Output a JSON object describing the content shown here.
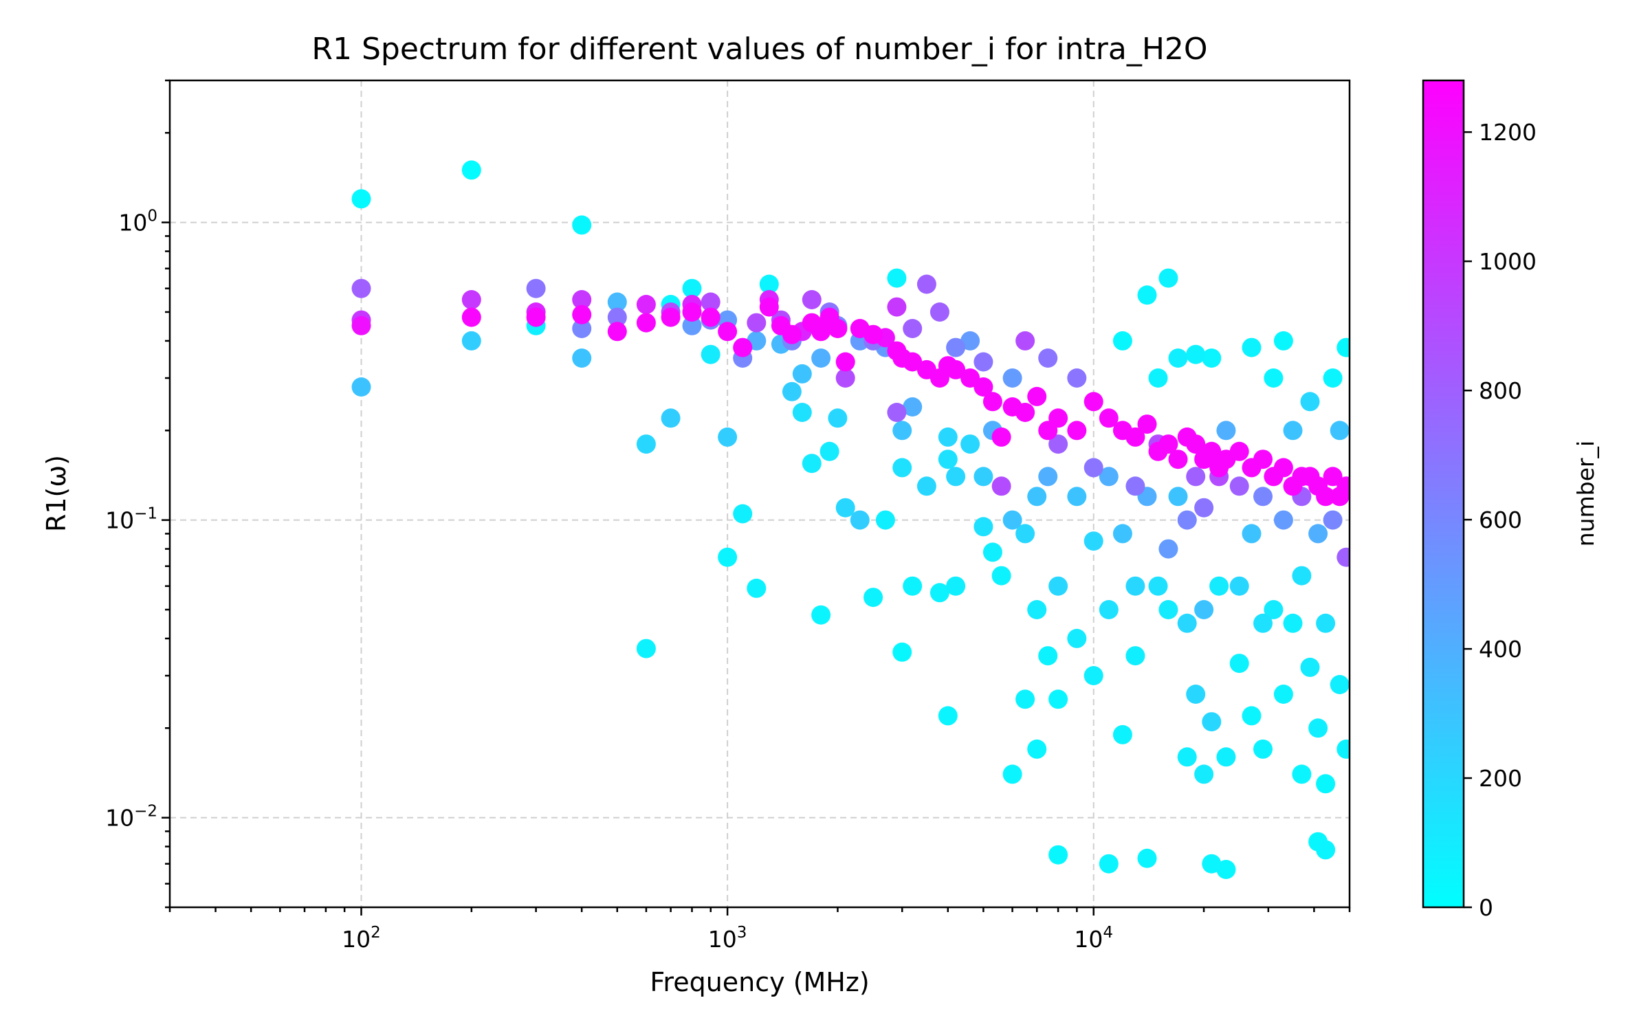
{
  "chart_data": {
    "type": "scatter",
    "title": "R1 Spectrum for different values of number_i for intra_H2O",
    "xlabel": "Frequency (MHz)",
    "ylabel": "R1(ω)",
    "xscale": "log",
    "yscale": "log",
    "xlim": [
      30,
      50000
    ],
    "ylim": [
      0.005,
      3.0
    ],
    "x_ticks": [
      {
        "base": "10",
        "exp": "2",
        "value": 100
      },
      {
        "base": "10",
        "exp": "3",
        "value": 1000
      },
      {
        "base": "10",
        "exp": "4",
        "value": 10000
      }
    ],
    "y_ticks": [
      {
        "base": "10",
        "exp": "0",
        "value": 1
      },
      {
        "base": "10",
        "exp": "−1",
        "value": 0.1
      },
      {
        "base": "10",
        "exp": "−2",
        "value": 0.01
      }
    ],
    "grid": true,
    "colormap": "cool",
    "colorbar": {
      "label": "number_i",
      "range": [
        0,
        1280
      ],
      "ticks": [
        "0",
        "200",
        "400",
        "600",
        "800",
        "1000",
        "1200"
      ],
      "tick_values": [
        0,
        200,
        400,
        600,
        800,
        1000,
        1200
      ]
    },
    "colors": {
      "low": "#00ffff",
      "high": "#ff00ff"
    },
    "points": [
      [
        100,
        1.2,
        30
      ],
      [
        100,
        0.28,
        300
      ],
      [
        100,
        0.6,
        800
      ],
      [
        100,
        0.47,
        1000
      ],
      [
        100,
        0.45,
        1200
      ],
      [
        200,
        1.5,
        20
      ],
      [
        200,
        0.4,
        250
      ],
      [
        200,
        0.55,
        1000
      ],
      [
        200,
        0.48,
        1250
      ],
      [
        300,
        0.45,
        80
      ],
      [
        300,
        0.6,
        700
      ],
      [
        300,
        0.5,
        1100
      ],
      [
        300,
        0.48,
        1250
      ],
      [
        400,
        0.98,
        40
      ],
      [
        400,
        0.35,
        300
      ],
      [
        400,
        0.44,
        600
      ],
      [
        400,
        0.55,
        1000
      ],
      [
        400,
        0.49,
        1250
      ],
      [
        500,
        0.54,
        350
      ],
      [
        500,
        0.48,
        700
      ],
      [
        500,
        0.43,
        1250
      ],
      [
        600,
        0.18,
        200
      ],
      [
        600,
        0.037,
        60
      ],
      [
        600,
        0.53,
        1100
      ],
      [
        600,
        0.46,
        1250
      ],
      [
        700,
        0.22,
        250
      ],
      [
        700,
        0.53,
        50
      ],
      [
        700,
        0.5,
        900
      ],
      [
        700,
        0.48,
        1250
      ],
      [
        800,
        0.6,
        60
      ],
      [
        800,
        0.45,
        500
      ],
      [
        800,
        0.53,
        1100
      ],
      [
        800,
        0.5,
        1250
      ],
      [
        900,
        0.36,
        100
      ],
      [
        900,
        0.47,
        600
      ],
      [
        900,
        0.54,
        900
      ],
      [
        900,
        0.48,
        1250
      ],
      [
        1000,
        0.19,
        250
      ],
      [
        1000,
        0.075,
        50
      ],
      [
        1000,
        0.47,
        500
      ],
      [
        1000,
        0.43,
        1250
      ],
      [
        1100,
        0.105,
        80
      ],
      [
        1100,
        0.35,
        600
      ],
      [
        1100,
        0.38,
        1250
      ],
      [
        1200,
        0.059,
        60
      ],
      [
        1200,
        0.4,
        400
      ],
      [
        1200,
        0.46,
        900
      ],
      [
        1300,
        0.62,
        50
      ],
      [
        1300,
        0.55,
        1100
      ],
      [
        1300,
        0.52,
        1250
      ],
      [
        1400,
        0.39,
        350
      ],
      [
        1400,
        0.47,
        900
      ],
      [
        1400,
        0.45,
        1250
      ],
      [
        1500,
        0.27,
        250
      ],
      [
        1500,
        0.4,
        600
      ],
      [
        1500,
        0.42,
        1250
      ],
      [
        1600,
        0.31,
        300
      ],
      [
        1600,
        0.23,
        150
      ],
      [
        1600,
        0.43,
        1100
      ],
      [
        1700,
        0.155,
        100
      ],
      [
        1700,
        0.55,
        900
      ],
      [
        1700,
        0.46,
        1250
      ],
      [
        1800,
        0.048,
        50
      ],
      [
        1800,
        0.35,
        400
      ],
      [
        1800,
        0.43,
        1250
      ],
      [
        1900,
        0.17,
        100
      ],
      [
        1900,
        0.5,
        700
      ],
      [
        1900,
        0.48,
        1250
      ],
      [
        2000,
        0.22,
        200
      ],
      [
        2000,
        0.45,
        600
      ],
      [
        2000,
        0.44,
        1250
      ],
      [
        2100,
        0.11,
        200
      ],
      [
        2100,
        0.3,
        900
      ],
      [
        2100,
        0.34,
        1250
      ],
      [
        2300,
        0.1,
        250
      ],
      [
        2300,
        0.4,
        500
      ],
      [
        2300,
        0.44,
        1250
      ],
      [
        2500,
        0.055,
        60
      ],
      [
        2500,
        0.4,
        700
      ],
      [
        2500,
        0.42,
        1250
      ],
      [
        2700,
        0.1,
        80
      ],
      [
        2700,
        0.38,
        500
      ],
      [
        2700,
        0.41,
        1200
      ],
      [
        2900,
        0.65,
        50
      ],
      [
        2900,
        0.23,
        800
      ],
      [
        2900,
        0.52,
        1000
      ],
      [
        2900,
        0.37,
        1250
      ],
      [
        3000,
        0.036,
        40
      ],
      [
        3000,
        0.2,
        300
      ],
      [
        3000,
        0.15,
        150
      ],
      [
        3000,
        0.35,
        1250
      ],
      [
        3200,
        0.06,
        60
      ],
      [
        3200,
        0.24,
        400
      ],
      [
        3200,
        0.44,
        800
      ],
      [
        3200,
        0.34,
        1250
      ],
      [
        3500,
        0.13,
        200
      ],
      [
        3500,
        0.62,
        800
      ],
      [
        3500,
        0.32,
        1250
      ],
      [
        3800,
        0.057,
        60
      ],
      [
        3800,
        0.5,
        800
      ],
      [
        3800,
        0.3,
        1250
      ],
      [
        4000,
        0.022,
        50
      ],
      [
        4000,
        0.19,
        200
      ],
      [
        4000,
        0.16,
        150
      ],
      [
        4000,
        0.33,
        1250
      ],
      [
        4200,
        0.06,
        80
      ],
      [
        4200,
        0.14,
        200
      ],
      [
        4200,
        0.38,
        600
      ],
      [
        4200,
        0.32,
        1250
      ],
      [
        4600,
        0.18,
        200
      ],
      [
        4600,
        0.4,
        500
      ],
      [
        4600,
        0.3,
        1250
      ],
      [
        5000,
        0.14,
        250
      ],
      [
        5000,
        0.095,
        150
      ],
      [
        5000,
        0.34,
        700
      ],
      [
        5000,
        0.28,
        1250
      ],
      [
        5300,
        0.078,
        80
      ],
      [
        5300,
        0.2,
        400
      ],
      [
        5300,
        0.25,
        1250
      ],
      [
        5600,
        0.13,
        900
      ],
      [
        5600,
        0.19,
        1250
      ],
      [
        5600,
        0.065,
        60
      ],
      [
        6000,
        0.014,
        50
      ],
      [
        6000,
        0.1,
        300
      ],
      [
        6000,
        0.3,
        500
      ],
      [
        6000,
        0.24,
        1250
      ],
      [
        6500,
        0.025,
        60
      ],
      [
        6500,
        0.09,
        200
      ],
      [
        6500,
        0.4,
        900
      ],
      [
        6500,
        0.23,
        1250
      ],
      [
        7000,
        0.017,
        50
      ],
      [
        7000,
        0.05,
        100
      ],
      [
        7000,
        0.12,
        300
      ],
      [
        7000,
        0.26,
        1250
      ],
      [
        7500,
        0.035,
        60
      ],
      [
        7500,
        0.14,
        400
      ],
      [
        7500,
        0.35,
        700
      ],
      [
        7500,
        0.2,
        1250
      ],
      [
        8000,
        0.0075,
        40
      ],
      [
        8000,
        0.025,
        50
      ],
      [
        8000,
        0.06,
        200
      ],
      [
        8000,
        0.18,
        800
      ],
      [
        8000,
        0.22,
        1250
      ],
      [
        9000,
        0.04,
        100
      ],
      [
        9000,
        0.12,
        300
      ],
      [
        9000,
        0.3,
        700
      ],
      [
        9000,
        0.2,
        1250
      ],
      [
        10000,
        0.03,
        80
      ],
      [
        10000,
        0.085,
        200
      ],
      [
        10000,
        0.15,
        700
      ],
      [
        10000,
        0.25,
        1250
      ],
      [
        11000,
        0.007,
        50
      ],
      [
        11000,
        0.05,
        150
      ],
      [
        11000,
        0.14,
        400
      ],
      [
        11000,
        0.22,
        1250
      ],
      [
        12000,
        0.019,
        60
      ],
      [
        12000,
        0.4,
        40
      ],
      [
        12000,
        0.09,
        300
      ],
      [
        12000,
        0.2,
        1250
      ],
      [
        13000,
        0.035,
        80
      ],
      [
        13000,
        0.06,
        200
      ],
      [
        13000,
        0.13,
        700
      ],
      [
        13000,
        0.19,
        1250
      ],
      [
        14000,
        0.0073,
        50
      ],
      [
        14000,
        0.57,
        50
      ],
      [
        14000,
        0.12,
        400
      ],
      [
        14000,
        0.21,
        1250
      ],
      [
        15000,
        0.06,
        150
      ],
      [
        15000,
        0.3,
        60
      ],
      [
        15000,
        0.18,
        900
      ],
      [
        15000,
        0.17,
        1250
      ],
      [
        16000,
        0.65,
        60
      ],
      [
        16000,
        0.05,
        100
      ],
      [
        16000,
        0.08,
        500
      ],
      [
        16000,
        0.18,
        1250
      ],
      [
        17000,
        0.12,
        300
      ],
      [
        17000,
        0.35,
        80
      ],
      [
        17000,
        0.16,
        1250
      ],
      [
        18000,
        0.016,
        80
      ],
      [
        18000,
        0.045,
        200
      ],
      [
        18000,
        0.1,
        600
      ],
      [
        18000,
        0.19,
        1250
      ],
      [
        19000,
        0.026,
        200
      ],
      [
        19000,
        0.36,
        60
      ],
      [
        19000,
        0.14,
        800
      ],
      [
        19000,
        0.18,
        1250
      ],
      [
        20000,
        0.014,
        100
      ],
      [
        20000,
        0.05,
        300
      ],
      [
        20000,
        0.11,
        700
      ],
      [
        20000,
        0.16,
        1250
      ],
      [
        21000,
        0.007,
        50
      ],
      [
        21000,
        0.021,
        200
      ],
      [
        21000,
        0.35,
        50
      ],
      [
        21000,
        0.17,
        1250
      ],
      [
        22000,
        0.06,
        100
      ],
      [
        22000,
        0.14,
        900
      ],
      [
        22000,
        0.15,
        1250
      ],
      [
        23000,
        0.0067,
        40
      ],
      [
        23000,
        0.016,
        80
      ],
      [
        23000,
        0.2,
        400
      ],
      [
        23000,
        0.16,
        1250
      ],
      [
        25000,
        0.033,
        60
      ],
      [
        25000,
        0.06,
        200
      ],
      [
        25000,
        0.13,
        800
      ],
      [
        25000,
        0.17,
        1250
      ],
      [
        27000,
        0.022,
        50
      ],
      [
        27000,
        0.38,
        60
      ],
      [
        27000,
        0.09,
        300
      ],
      [
        27000,
        0.15,
        1250
      ],
      [
        29000,
        0.017,
        60
      ],
      [
        29000,
        0.045,
        150
      ],
      [
        29000,
        0.12,
        600
      ],
      [
        29000,
        0.16,
        1250
      ],
      [
        31000,
        0.05,
        100
      ],
      [
        31000,
        0.3,
        50
      ],
      [
        31000,
        0.14,
        1250
      ],
      [
        33000,
        0.026,
        60
      ],
      [
        33000,
        0.4,
        40
      ],
      [
        33000,
        0.1,
        500
      ],
      [
        33000,
        0.15,
        1250
      ],
      [
        35000,
        0.045,
        80
      ],
      [
        35000,
        0.2,
        300
      ],
      [
        35000,
        0.13,
        1250
      ],
      [
        37000,
        0.014,
        50
      ],
      [
        37000,
        0.065,
        150
      ],
      [
        37000,
        0.12,
        800
      ],
      [
        37000,
        0.14,
        1250
      ],
      [
        39000,
        0.032,
        100
      ],
      [
        39000,
        0.25,
        200
      ],
      [
        39000,
        0.14,
        1250
      ],
      [
        41000,
        0.0083,
        40
      ],
      [
        41000,
        0.02,
        80
      ],
      [
        41000,
        0.09,
        400
      ],
      [
        41000,
        0.13,
        1250
      ],
      [
        43000,
        0.0078,
        50
      ],
      [
        43000,
        0.013,
        40
      ],
      [
        43000,
        0.045,
        150
      ],
      [
        43000,
        0.12,
        1250
      ],
      [
        45000,
        0.3,
        50
      ],
      [
        45000,
        0.1,
        600
      ],
      [
        45000,
        0.14,
        1250
      ],
      [
        47000,
        0.028,
        80
      ],
      [
        47000,
        0.2,
        300
      ],
      [
        47000,
        0.12,
        1250
      ],
      [
        49000,
        0.017,
        60
      ],
      [
        49000,
        0.38,
        40
      ],
      [
        49000,
        0.075,
        800
      ],
      [
        49000,
        0.13,
        1250
      ]
    ]
  }
}
